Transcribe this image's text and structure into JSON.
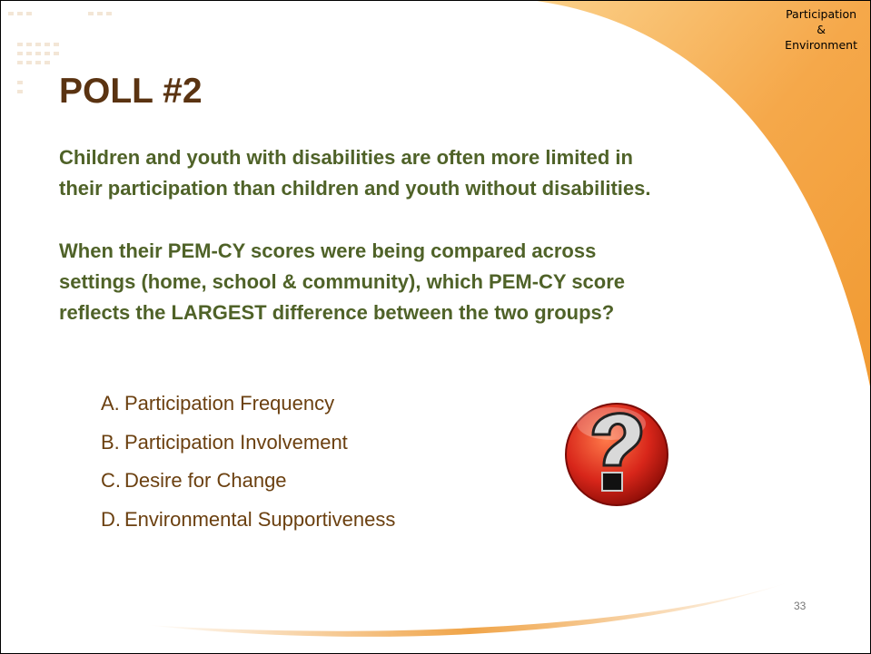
{
  "header": {
    "tag": [
      "Participation",
      "&",
      "Environment"
    ],
    "title": "POLL #2"
  },
  "body": {
    "paragraphs": [
      [
        "Children and youth with disabilities are often more limited in",
        "their participation than children and youth without disabilities."
      ],
      [
        "When their PEM-CY scores were being compared across",
        "settings (home, school & community), which PEM-CY score",
        "reflects the LARGEST difference between the two groups?"
      ]
    ],
    "options": [
      {
        "letter": "A.",
        "text": "Participation Frequency"
      },
      {
        "letter": "B.",
        "text": "Participation Involvement"
      },
      {
        "letter": "C.",
        "text": "Desire for Change"
      },
      {
        "letter": "D.",
        "text": "Environmental Supportiveness"
      }
    ]
  },
  "footer": {
    "page_number": "33"
  }
}
